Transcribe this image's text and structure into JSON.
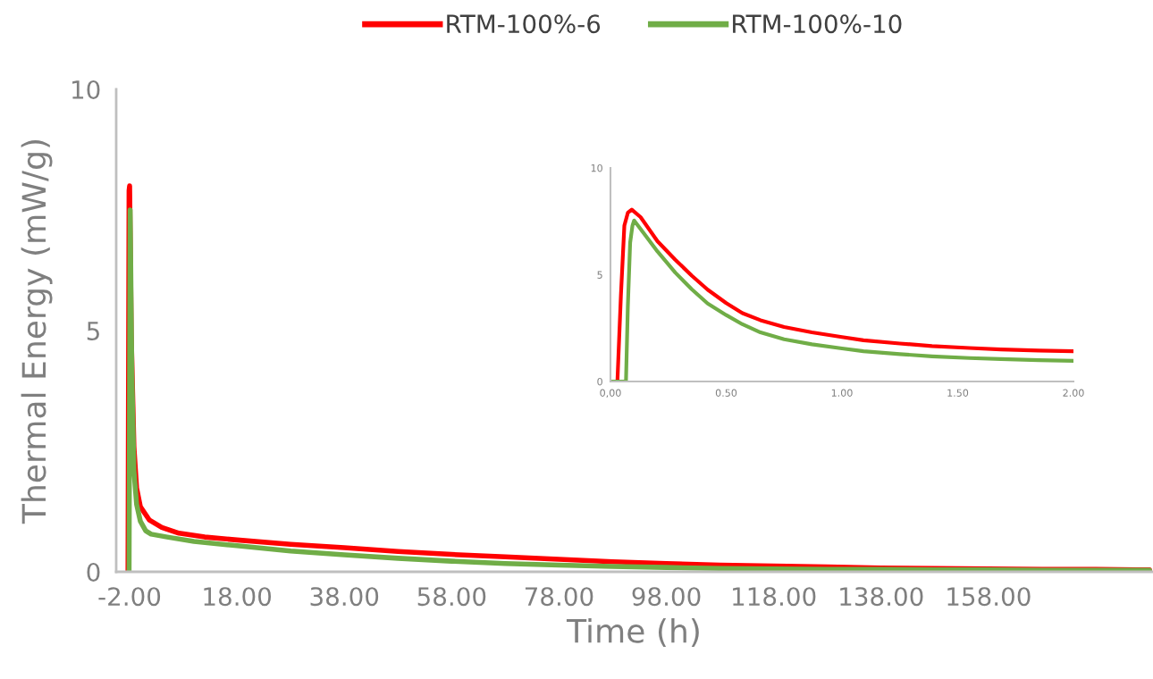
{
  "chart_data": [
    {
      "type": "line",
      "xlabel": "Time (h)",
      "ylabel": "Thermal Energy (mW/g)",
      "xlim": [
        -4.5,
        188.5
      ],
      "ylim": [
        0,
        10
      ],
      "xticks": [
        {
          "value": -2,
          "label": "-2.00"
        },
        {
          "value": 18,
          "label": "18.00"
        },
        {
          "value": 38,
          "label": "38.00"
        },
        {
          "value": 58,
          "label": "58.00"
        },
        {
          "value": 78,
          "label": "78.00"
        },
        {
          "value": 98,
          "label": "98.00"
        },
        {
          "value": 118,
          "label": "118.00"
        },
        {
          "value": 138,
          "label": "138.00"
        },
        {
          "value": 158,
          "label": "158.00"
        }
      ],
      "yticks": [
        0,
        5,
        10
      ],
      "grid": false,
      "legend": "top",
      "marker": "none",
      "line_style": "solid",
      "series": [
        {
          "name": "RTM-100%-6",
          "color": "#ff0000",
          "x": [
            -2.3,
            -2.2,
            -2.1,
            -2.0,
            -1.7,
            -1.2,
            -0.7,
            0,
            1.7,
            4,
            7.2,
            12,
            18,
            28,
            38,
            48,
            58,
            68,
            78,
            88,
            98,
            108,
            118,
            128,
            138,
            148,
            158,
            168,
            178,
            188
          ],
          "values": [
            0,
            4,
            7.9,
            8.0,
            4.9,
            2.6,
            1.74,
            1.35,
            1.07,
            0.92,
            0.8,
            0.72,
            0.66,
            0.57,
            0.5,
            0.42,
            0.36,
            0.31,
            0.26,
            0.21,
            0.17,
            0.14,
            0.12,
            0.1,
            0.08,
            0.07,
            0.06,
            0.05,
            0.05,
            0.04
          ]
        },
        {
          "name": "RTM-100%-10",
          "color": "#70ad47",
          "x": [
            -2.1,
            -2.0,
            -1.9,
            -1.6,
            -1.2,
            -0.7,
            0,
            1,
            2,
            5,
            10,
            18,
            28,
            38,
            48,
            58,
            68,
            78,
            88,
            98,
            108,
            118,
            128,
            138,
            148,
            158,
            168,
            178,
            188
          ],
          "values": [
            0,
            4,
            7.5,
            4.2,
            2.1,
            1.4,
            1.05,
            0.85,
            0.78,
            0.72,
            0.63,
            0.54,
            0.43,
            0.35,
            0.28,
            0.22,
            0.17,
            0.14,
            0.11,
            0.09,
            0.07,
            0.06,
            0.05,
            0.05,
            0.04,
            0.04,
            0.03,
            0.03,
            0.03
          ]
        }
      ]
    },
    {
      "type": "line",
      "xlim": [
        0,
        2
      ],
      "ylim": [
        0,
        10
      ],
      "xticks": [
        {
          "value": 0,
          "label": "0,00"
        },
        {
          "value": 0.5,
          "label": "0.50"
        },
        {
          "value": 1,
          "label": "1.00"
        },
        {
          "value": 1.5,
          "label": "1.50"
        },
        {
          "value": 2,
          "label": "2.00"
        }
      ],
      "yticks": [
        0,
        5,
        10
      ],
      "grid": false,
      "legend": false,
      "marker": "none",
      "line_style": "solid",
      "series": [
        {
          "color": "#ff0000",
          "x": [
            0,
            0.03,
            0.045,
            0.06,
            0.075,
            0.092,
            0.13,
            0.203,
            0.28,
            0.351,
            0.42,
            0.5,
            0.57,
            0.648,
            0.75,
            0.87,
            1.0,
            1.093,
            1.25,
            1.389,
            1.55,
            1.686,
            1.85,
            2.0
          ],
          "values": [
            0,
            0,
            4,
            7.3,
            7.9,
            8.05,
            7.7,
            6.57,
            5.7,
            4.96,
            4.3,
            3.67,
            3.2,
            2.87,
            2.55,
            2.3,
            2.08,
            1.93,
            1.78,
            1.66,
            1.57,
            1.5,
            1.45,
            1.42
          ]
        },
        {
          "color": "#70ad47",
          "x": [
            0,
            0.067,
            0.075,
            0.085,
            0.095,
            0.102,
            0.14,
            0.203,
            0.28,
            0.351,
            0.42,
            0.5,
            0.57,
            0.648,
            0.75,
            0.87,
            1.0,
            1.093,
            1.25,
            1.389,
            1.55,
            1.686,
            1.85,
            2.0
          ],
          "values": [
            0,
            0,
            3.5,
            6.5,
            7.3,
            7.54,
            7.0,
            6.09,
            5.1,
            4.32,
            3.65,
            3.11,
            2.68,
            2.3,
            1.98,
            1.74,
            1.55,
            1.42,
            1.28,
            1.18,
            1.1,
            1.05,
            1.0,
            0.97
          ]
        }
      ]
    }
  ]
}
